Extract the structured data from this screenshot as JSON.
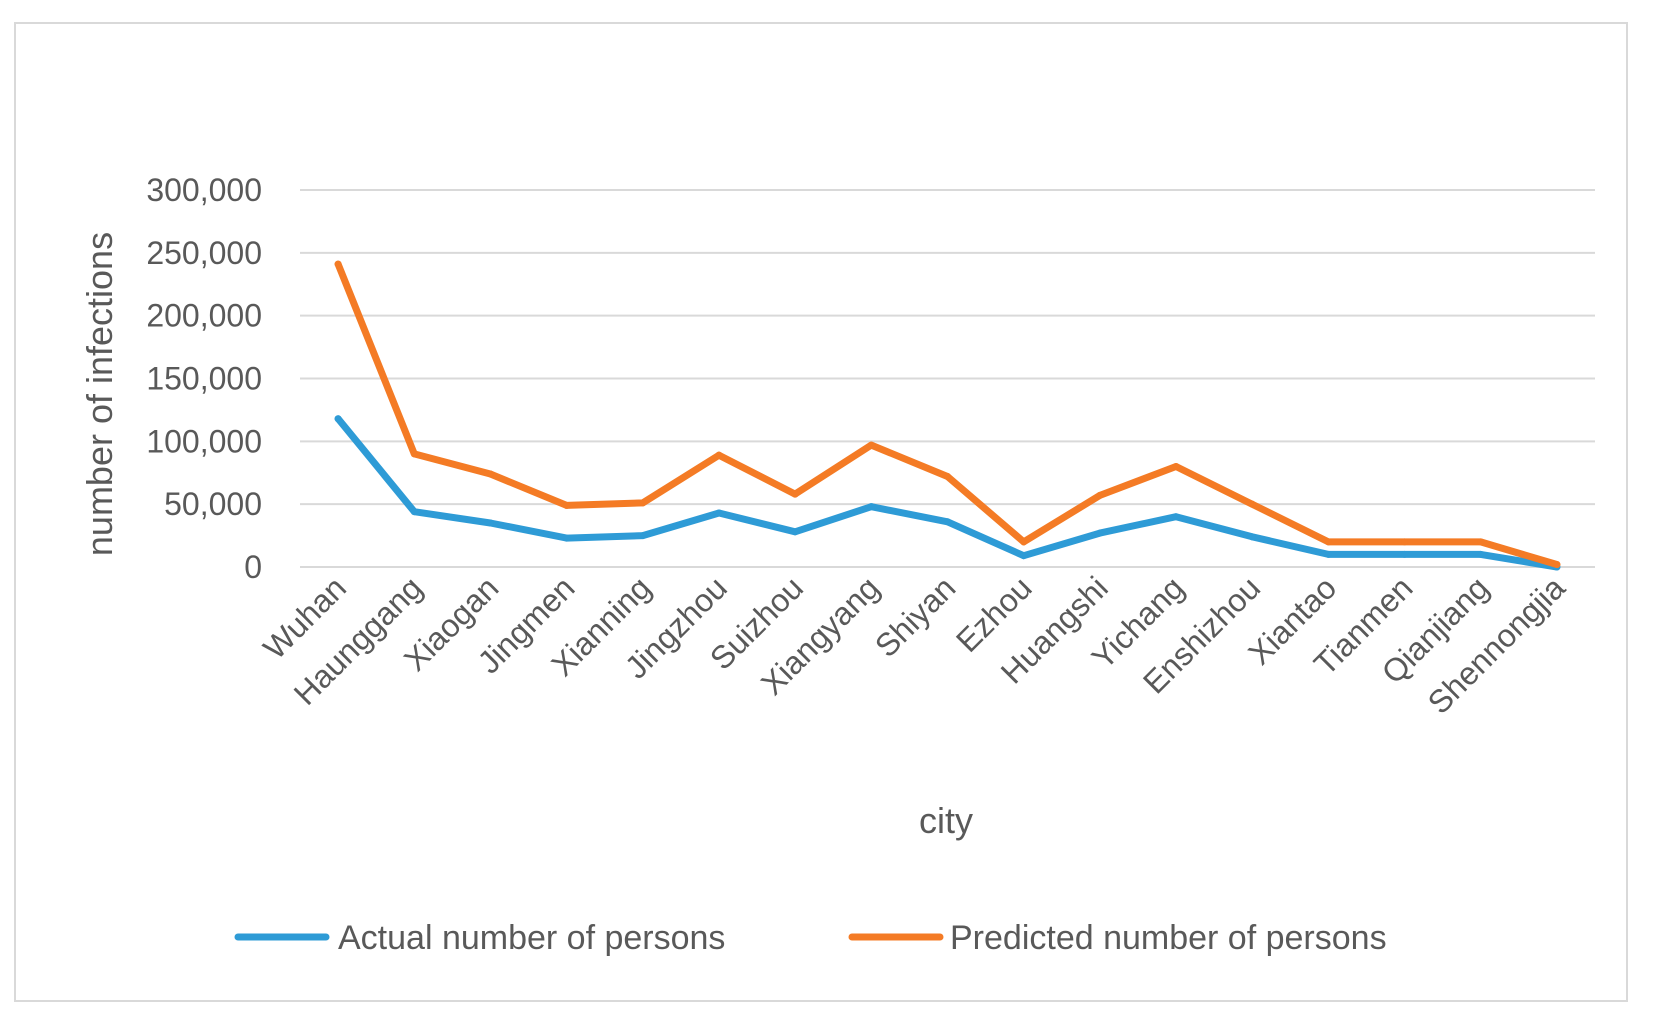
{
  "chart_data": {
    "type": "line",
    "title": "",
    "xlabel": "city",
    "ylabel": "number of infections",
    "ylim": [
      0,
      300000
    ],
    "yticks": [
      0,
      50000,
      100000,
      150000,
      200000,
      250000,
      300000
    ],
    "ytick_labels": [
      "0",
      "50,000",
      "100,000",
      "150,000",
      "200,000",
      "250,000",
      "300,000"
    ],
    "grid": true,
    "legend_position": "bottom",
    "categories": [
      "Wuhan",
      "Haunggang",
      "Xiaogan",
      "Jingmen",
      "Xianning",
      "Jingzhou",
      "Suizhou",
      "Xiangyang",
      "Shiyan",
      "Ezhou",
      "Huangshi",
      "Yichang",
      "Enshizhou",
      "Xiantao",
      "Tianmen",
      "Qianjiang",
      "Shennongjia"
    ],
    "series": [
      {
        "name": "Actual number of persons",
        "color": "#2e9bd6",
        "values": [
          118000,
          44000,
          35000,
          23000,
          25000,
          43000,
          28000,
          48000,
          36000,
          9000,
          27000,
          40000,
          24000,
          10000,
          10000,
          10000,
          0
        ]
      },
      {
        "name": "Predicted number of persons",
        "color": "#f47b25",
        "values": [
          241000,
          90000,
          74000,
          49000,
          51000,
          89000,
          58000,
          97000,
          72000,
          20000,
          57000,
          80000,
          50000,
          20000,
          20000,
          20000,
          2000
        ]
      }
    ]
  }
}
